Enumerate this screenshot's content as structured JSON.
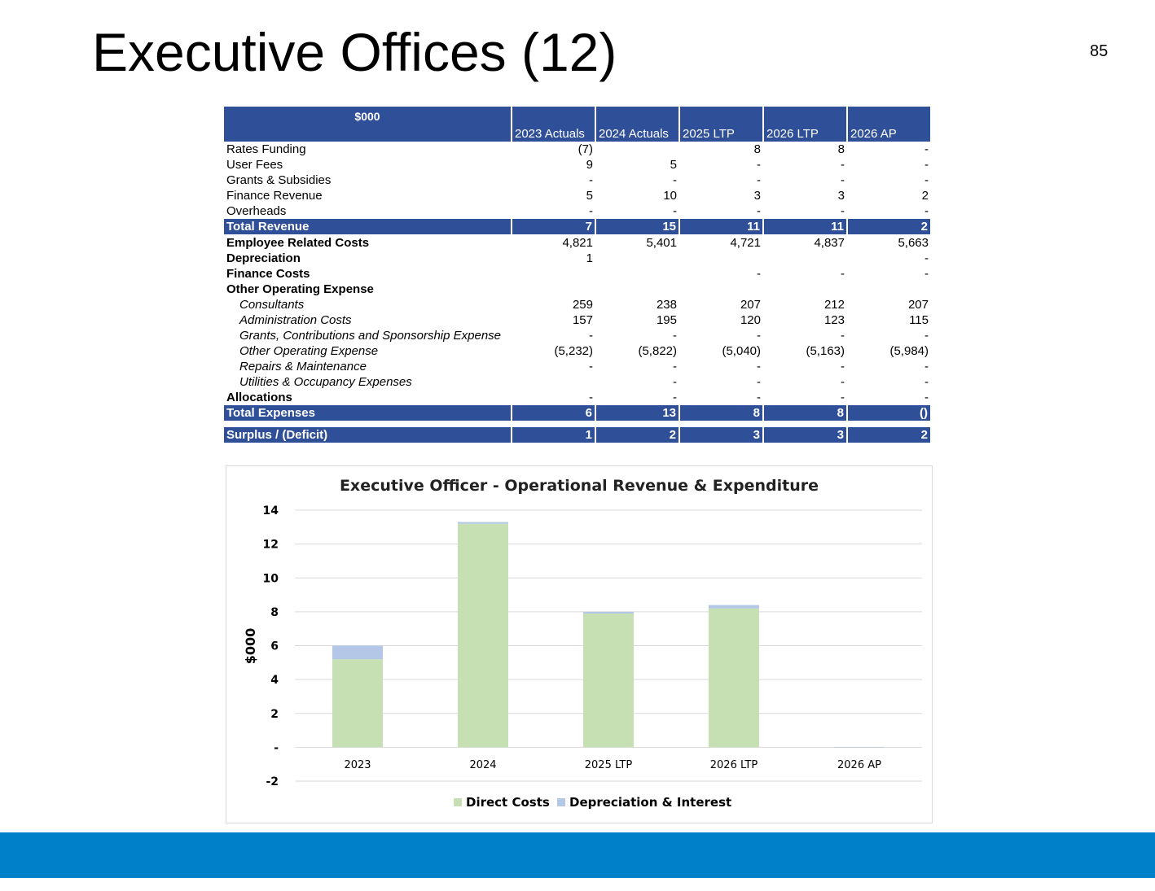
{
  "slide": {
    "title": "Executive Offices (12)",
    "page_number": "85"
  },
  "table": {
    "unit_label": "$000",
    "columns": [
      "2023 Actuals",
      "2024 Actuals",
      "2025 LTP",
      "2026 LTP",
      "2026 AP"
    ],
    "rows": [
      {
        "label": "Rates Funding",
        "style": "normal",
        "values": [
          "(7)",
          "",
          "8",
          "8",
          "-"
        ]
      },
      {
        "label": "User Fees",
        "style": "normal",
        "values": [
          "9",
          "5",
          "-",
          "-",
          "-"
        ]
      },
      {
        "label": "Grants & Subsidies",
        "style": "normal",
        "values": [
          "-",
          "-",
          "-",
          "-",
          "-"
        ]
      },
      {
        "label": "Finance Revenue",
        "style": "normal",
        "values": [
          "5",
          "10",
          "3",
          "3",
          "2"
        ]
      },
      {
        "label": "Overheads",
        "style": "normal",
        "values": [
          "-",
          "-",
          "-",
          "-",
          "-"
        ]
      },
      {
        "label": "Total Revenue",
        "style": "total",
        "values": [
          "7",
          "15",
          "11",
          "11",
          "2"
        ]
      },
      {
        "label": "Employee Related Costs",
        "style": "bold",
        "values": [
          "4,821",
          "5,401",
          "4,721",
          "4,837",
          "5,663"
        ]
      },
      {
        "label": "Depreciation",
        "style": "bold",
        "values": [
          "1",
          "",
          "",
          "",
          "-"
        ]
      },
      {
        "label": "Finance Costs",
        "style": "bold",
        "values": [
          "",
          "",
          "-",
          "-",
          "-"
        ]
      },
      {
        "label": "Other Operating  Expense",
        "style": "bold",
        "values": [
          "",
          "",
          "",
          "",
          ""
        ]
      },
      {
        "label": "Consultants",
        "style": "sub",
        "values": [
          "259",
          "238",
          "207",
          "212",
          "207"
        ]
      },
      {
        "label": "Administration Costs",
        "style": "sub",
        "values": [
          "157",
          "195",
          "120",
          "123",
          "115"
        ]
      },
      {
        "label": "Grants, Contributions and Sponsorship Expense",
        "style": "sub",
        "values": [
          "-",
          "-",
          "-",
          "-",
          "-"
        ]
      },
      {
        "label": "Other Operating Expense",
        "style": "sub",
        "values": [
          "(5,232)",
          "(5,822)",
          "(5,040)",
          "(5,163)",
          "(5,984)"
        ]
      },
      {
        "label": "Repairs & Maintenance",
        "style": "sub",
        "values": [
          "-",
          "-",
          "-",
          "-",
          "-"
        ]
      },
      {
        "label": "Utilities & Occupancy Expenses",
        "style": "sub",
        "values": [
          "",
          "-",
          "-",
          "-",
          "-"
        ]
      },
      {
        "label": "Allocations",
        "style": "bold",
        "values": [
          "-",
          "-",
          "-",
          "-",
          "-"
        ]
      },
      {
        "label": "Total Expenses",
        "style": "total",
        "values": [
          "6",
          "13",
          "8",
          "8",
          "()"
        ]
      },
      {
        "label": "",
        "style": "gap",
        "values": [
          "",
          "",
          "",
          "",
          ""
        ]
      },
      {
        "label": "Surplus / (Deficit)",
        "style": "total",
        "values": [
          "1",
          "2",
          "3",
          "3",
          "2"
        ]
      }
    ]
  },
  "chart_data": {
    "type": "bar",
    "stacked": true,
    "title": "Executive Officer - Operational Revenue & Expenditure",
    "xlabel": "",
    "ylabel": "$000",
    "categories": [
      "2023",
      "2024",
      "2025 LTP",
      "2026 LTP",
      "2026 AP"
    ],
    "series": [
      {
        "name": "Direct Costs",
        "color": "#c6e0b4",
        "values": [
          5.2,
          13.2,
          7.9,
          8.2,
          0
        ]
      },
      {
        "name": "Depreciation & Interest",
        "color": "#b4c7e7",
        "values": [
          0.8,
          0.1,
          0.1,
          0.2,
          0
        ]
      }
    ],
    "ylim": [
      -2,
      14
    ],
    "yticks": [
      14,
      12,
      10,
      8,
      6,
      4,
      2,
      0,
      -2
    ],
    "ytick_labels": [
      "14",
      "12",
      "10",
      "8",
      "6",
      "4",
      "2",
      "-",
      "-2"
    ],
    "grid": true,
    "legend": "bottom",
    "gridline_color": "#d9d9d9"
  },
  "footer": {
    "color": "#0080c8"
  }
}
